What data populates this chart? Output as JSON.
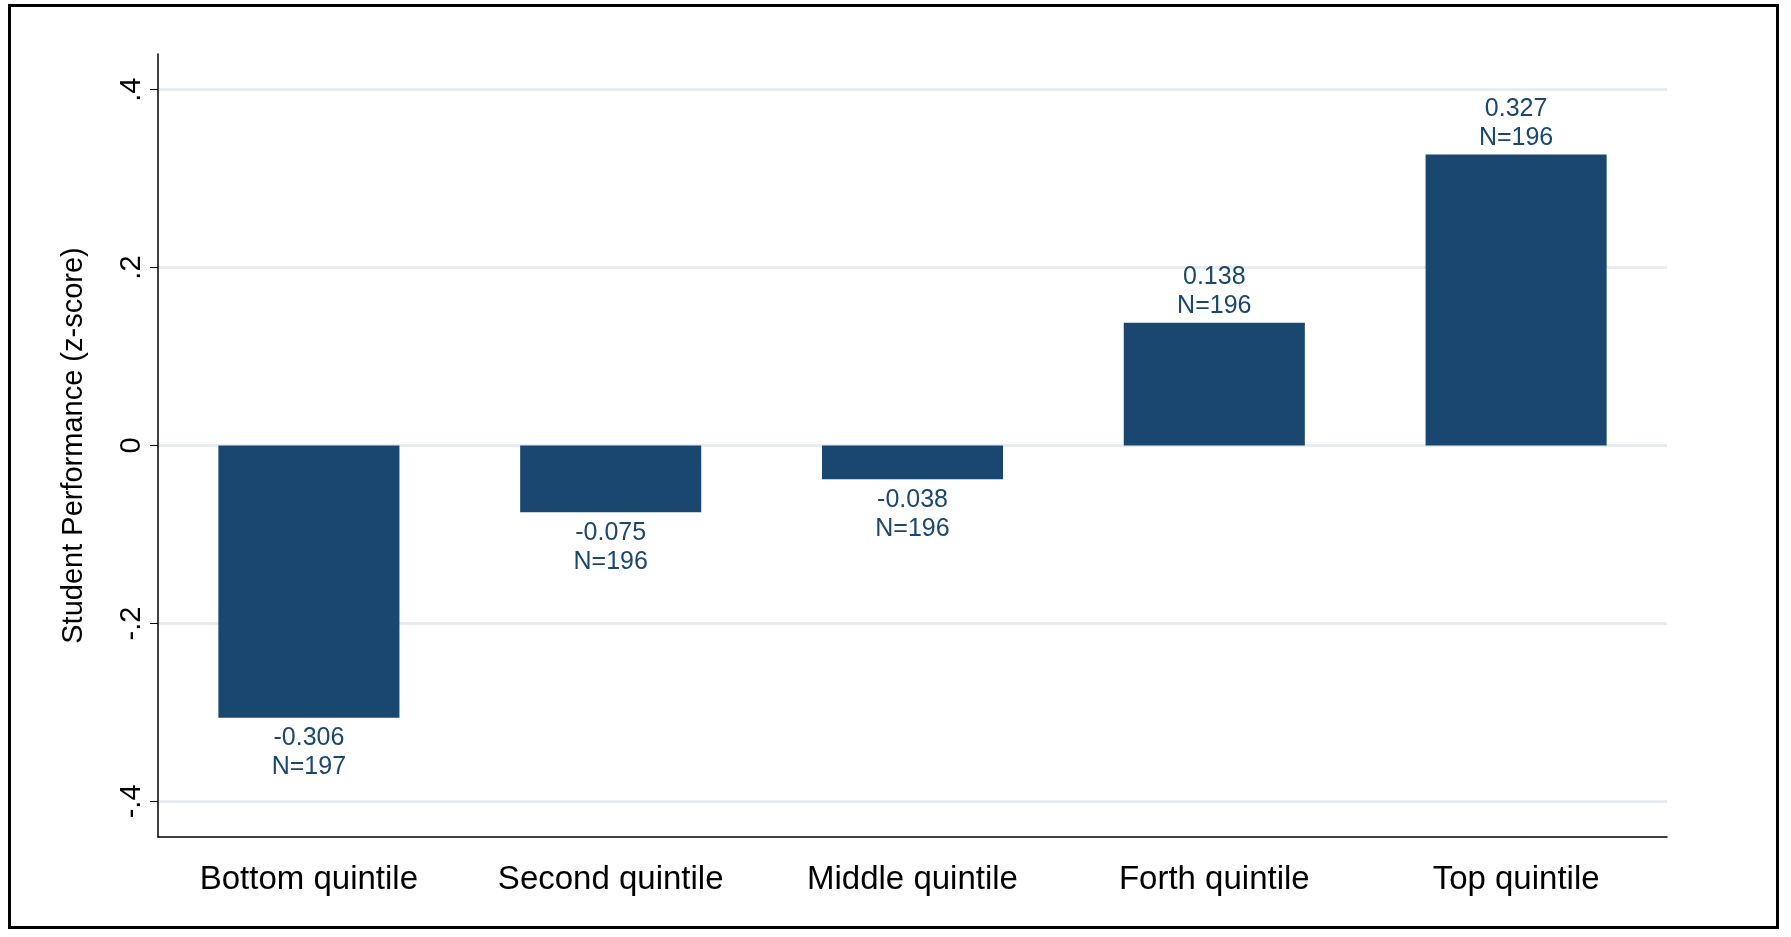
{
  "chart_data": {
    "type": "bar",
    "ylabel": "Student Performance (z-score)",
    "categories": [
      "Bottom quintile",
      "Second quintile",
      "Middle quintile",
      "Forth quintile",
      "Top quintile"
    ],
    "values": [
      -0.306,
      -0.075,
      -0.038,
      0.138,
      0.327
    ],
    "value_labels": [
      "-0.306\nN=197",
      "-0.075\nN=196",
      "-0.038\nN=196",
      "0.138\nN=196",
      "0.327\nN=196"
    ],
    "color": "#1a476f",
    "ylim": [
      -0.44,
      0.44
    ],
    "yticks": [
      {
        "value": -0.4,
        "label": "-.4"
      },
      {
        "value": -0.2,
        "label": "-.2"
      },
      {
        "value": 0,
        "label": "0"
      },
      {
        "value": 0.2,
        "label": ".2"
      },
      {
        "value": 0.4,
        "label": ".4"
      }
    ],
    "grid": "y"
  }
}
